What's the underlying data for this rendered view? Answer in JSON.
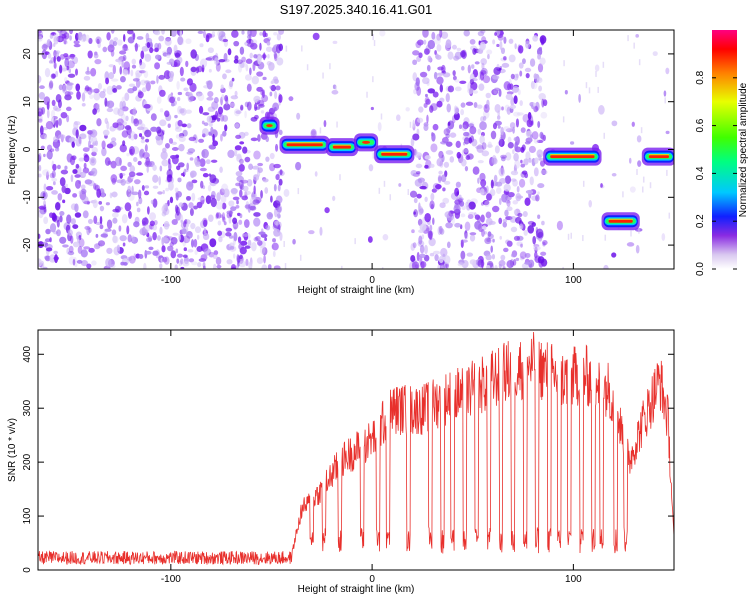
{
  "title": "S197.2025.340.16.41.G01",
  "chart_data": [
    {
      "type": "heatmap",
      "xlabel": "Height of straight line (km)",
      "ylabel": "Frequency (Hz)",
      "xlim": [
        -166,
        150
      ],
      "ylim": [
        -25,
        25
      ],
      "xticks": [
        -100,
        0,
        100
      ],
      "yticks": [
        -20,
        -10,
        0,
        10,
        20
      ],
      "colorbar": {
        "label": "Normalized spectral amplitude",
        "range": [
          0,
          1
        ],
        "ticks": [
          0.0,
          0.2,
          0.4,
          0.6,
          0.8
        ]
      },
      "signal_segments": [
        {
          "x_start": -55,
          "x_end": -47,
          "freq": 5
        },
        {
          "x_start": -45,
          "x_end": -22,
          "freq": 1
        },
        {
          "x_start": -22,
          "x_end": -8,
          "freq": 0.5
        },
        {
          "x_start": -8,
          "x_end": 2,
          "freq": 1.5
        },
        {
          "x_start": 2,
          "x_end": 20,
          "freq": -1
        },
        {
          "x_start": 86,
          "x_end": 113,
          "freq": -1.5
        },
        {
          "x_start": 115,
          "x_end": 132,
          "freq": -15
        },
        {
          "x_start": 135,
          "x_end": 150,
          "freq": -1.5
        }
      ],
      "blank_ranges": [
        [
          -45,
          20
        ],
        [
          86,
          150
        ]
      ]
    },
    {
      "type": "line",
      "xlabel": "Height of straight line (km)",
      "ylabel": "SNR (10 * v/v)",
      "xlim": [
        -166,
        150
      ],
      "ylim": [
        0,
        445
      ],
      "xticks": [
        -100,
        0,
        100
      ],
      "yticks": [
        0,
        100,
        200,
        300,
        400
      ],
      "series_color": "#e8302c",
      "envelope": [
        {
          "x": -166,
          "snr": 20
        },
        {
          "x": -50,
          "snr": 22
        },
        {
          "x": -40,
          "snr": 30
        },
        {
          "x": -35,
          "snr": 120
        },
        {
          "x": -25,
          "snr": 160
        },
        {
          "x": -15,
          "snr": 220
        },
        {
          "x": 0,
          "snr": 260
        },
        {
          "x": 10,
          "snr": 320
        },
        {
          "x": 25,
          "snr": 320
        },
        {
          "x": 35,
          "snr": 340
        },
        {
          "x": 50,
          "snr": 360
        },
        {
          "x": 70,
          "snr": 400
        },
        {
          "x": 80,
          "snr": 410
        },
        {
          "x": 95,
          "snr": 380
        },
        {
          "x": 105,
          "snr": 390
        },
        {
          "x": 118,
          "snr": 360
        },
        {
          "x": 128,
          "snr": 220
        },
        {
          "x": 135,
          "snr": 300
        },
        {
          "x": 143,
          "snr": 380
        },
        {
          "x": 147,
          "snr": 300
        },
        {
          "x": 150,
          "snr": 60
        }
      ]
    }
  ]
}
